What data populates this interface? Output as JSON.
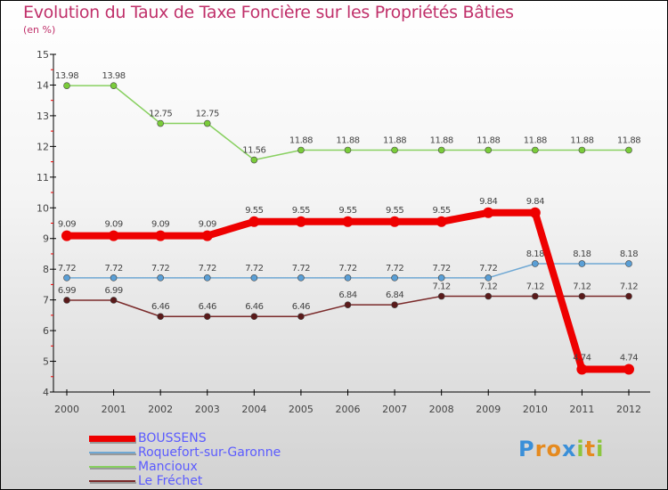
{
  "chart_data": {
    "type": "line",
    "title": "Evolution du Taux de Taxe Foncière sur les Propriétés Bâties",
    "subtitle": "(en %)",
    "x": [
      "2000",
      "2001",
      "2002",
      "2003",
      "2004",
      "2005",
      "2006",
      "2007",
      "2008",
      "2009",
      "2010",
      "2011",
      "2012"
    ],
    "ylim": [
      4,
      15
    ],
    "yticks": [
      4,
      5,
      6,
      7,
      8,
      9,
      10,
      11,
      12,
      13,
      14,
      15
    ],
    "series": [
      {
        "name": "BOUSSENS",
        "color": "#ee0000",
        "values": [
          9.09,
          9.09,
          9.09,
          9.09,
          9.55,
          9.55,
          9.55,
          9.55,
          9.55,
          9.84,
          9.84,
          4.74,
          4.74
        ]
      },
      {
        "name": "Roquefort-sur-Garonne",
        "color": "#6fa8d4",
        "values": [
          7.72,
          7.72,
          7.72,
          7.72,
          7.72,
          7.72,
          7.72,
          7.72,
          7.72,
          7.72,
          8.18,
          8.18,
          8.18
        ]
      },
      {
        "name": "Mancioux",
        "color": "#88d060",
        "values": [
          13.98,
          13.98,
          12.75,
          12.75,
          11.56,
          11.88,
          11.88,
          11.88,
          11.88,
          11.88,
          11.88,
          11.88,
          11.88
        ]
      },
      {
        "name": "Le Fréchet",
        "color": "#7a2a2a",
        "values": [
          6.99,
          6.99,
          6.46,
          6.46,
          6.46,
          6.46,
          6.84,
          6.84,
          7.12,
          7.12,
          7.12,
          7.12,
          7.12
        ]
      }
    ],
    "legend": "bottom-left"
  },
  "logo": "Proxiti"
}
